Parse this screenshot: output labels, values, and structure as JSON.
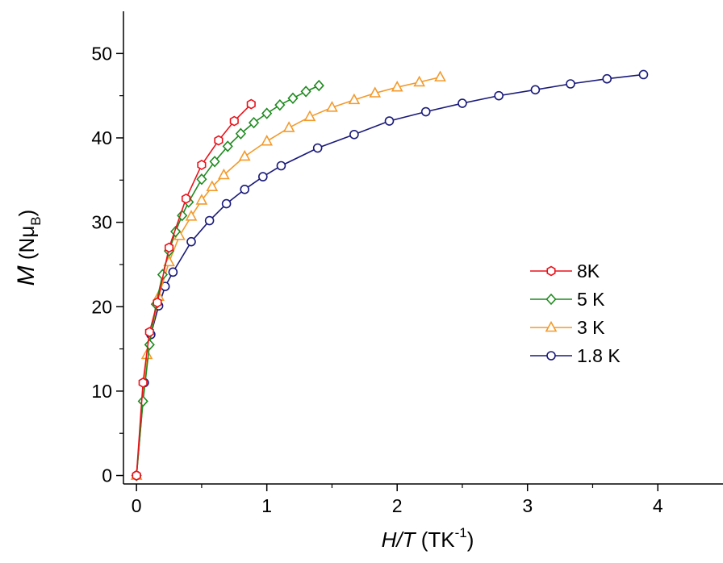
{
  "chart_data": {
    "type": "line",
    "xlim": [
      -0.1,
      4.5
    ],
    "ylim": [
      -1,
      55
    ],
    "x_ticks": [
      0,
      1,
      2,
      3,
      4
    ],
    "y_ticks": [
      0,
      10,
      20,
      30,
      40,
      50
    ],
    "x_tick_labels": [
      "0",
      "1",
      "2",
      "3",
      "4"
    ],
    "y_tick_labels": [
      "0",
      "10",
      "20",
      "30",
      "40",
      "50"
    ],
    "xlabel": {
      "italic": "H/T",
      "unit": " (TK",
      "sup": "-1",
      "close": ")"
    },
    "ylabel": {
      "italic": "M",
      "unit": " (Nμ",
      "sub": "B",
      "close": ")"
    },
    "legend_position": "middle-right",
    "series": [
      {
        "name": "8K",
        "color": "#e8141c",
        "marker": "hexagon",
        "x": [
          0,
          0.05,
          0.1,
          0.16,
          0.25,
          0.38,
          0.5,
          0.63,
          0.75,
          0.88
        ],
        "y": [
          0,
          11,
          17,
          20.5,
          27,
          32.8,
          36.8,
          39.7,
          42,
          44
        ]
      },
      {
        "name": "5 K",
        "color": "#1f8a1f",
        "marker": "diamond",
        "x": [
          0,
          0.05,
          0.1,
          0.15,
          0.2,
          0.25,
          0.3,
          0.35,
          0.4,
          0.5,
          0.6,
          0.7,
          0.8,
          0.9,
          1.0,
          1.1,
          1.2,
          1.3,
          1.4
        ],
        "y": [
          0,
          8.8,
          15.5,
          20.3,
          23.8,
          26.6,
          28.9,
          30.8,
          32.4,
          35.1,
          37.2,
          39.0,
          40.5,
          41.8,
          42.9,
          43.9,
          44.7,
          45.5,
          46.2
        ]
      },
      {
        "name": "3 K",
        "color": "#f39a2a",
        "marker": "triangle",
        "x": [
          0,
          0.08,
          0.17,
          0.25,
          0.33,
          0.42,
          0.5,
          0.58,
          0.67,
          0.83,
          1.0,
          1.17,
          1.33,
          1.5,
          1.67,
          1.83,
          2.0,
          2.17,
          2.33
        ],
        "y": [
          0,
          14.3,
          21.2,
          25.3,
          28.4,
          30.7,
          32.6,
          34.2,
          35.6,
          37.8,
          39.6,
          41.2,
          42.5,
          43.6,
          44.5,
          45.3,
          46,
          46.6,
          47.2
        ]
      },
      {
        "name": "1.8 K",
        "color": "#1a1a7a",
        "marker": "circle",
        "x": [
          0,
          0.06,
          0.11,
          0.17,
          0.22,
          0.28,
          0.42,
          0.56,
          0.69,
          0.83,
          0.97,
          1.11,
          1.39,
          1.67,
          1.94,
          2.22,
          2.5,
          2.78,
          3.06,
          3.33,
          3.61,
          3.89
        ],
        "y": [
          0,
          11,
          16.7,
          20.1,
          22.4,
          24.1,
          27.7,
          30.2,
          32.2,
          33.9,
          35.4,
          36.7,
          38.8,
          40.4,
          42,
          43.1,
          44.1,
          45,
          45.7,
          46.4,
          47,
          47.5
        ]
      }
    ]
  }
}
